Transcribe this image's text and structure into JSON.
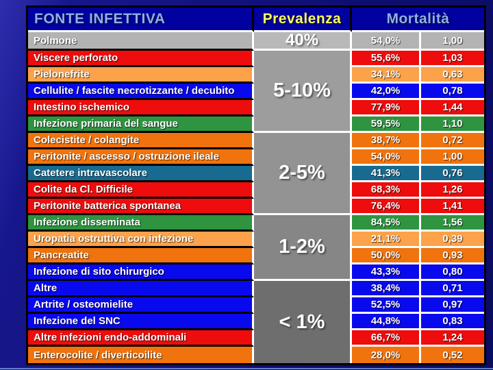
{
  "slide": {
    "background": "#0f0f74",
    "bottom_accent_color": "#6e93d6"
  },
  "table": {
    "header": {
      "source_label": "FONTE INFETTIVA",
      "prevalence_label": "Prevalenza",
      "mortality_label": "Mortalità",
      "bg": "#0101a0",
      "source_text_color": "#8fb0e8",
      "prevalence_text_color": "#ffff5e",
      "mortality_text_color": "#8fb0e8"
    },
    "row_colors": {
      "gray": "#b3b3b3",
      "red": "#ee0c0c",
      "orange": "#f0730d",
      "orange_light": "#fba24a",
      "blue": "#0909ee",
      "green": "#2e9440",
      "teal": "#186a90"
    },
    "groups": [
      {
        "prevalence": "40%",
        "shade": "#b8b8b8",
        "rows": [
          {
            "label": "Polmone",
            "color": "gray",
            "mortality_pct": "54,0%",
            "mortality_ratio": "1,00"
          }
        ]
      },
      {
        "prevalence": "5-10%",
        "shade": "#9d9d9d",
        "rows": [
          {
            "label": "Viscere perforato",
            "color": "red",
            "mortality_pct": "55,6%",
            "mortality_ratio": "1,03"
          },
          {
            "label": "Pielonefrite",
            "color": "orange_light",
            "mortality_pct": "34,1%",
            "mortality_ratio": "0,63"
          },
          {
            "label": "Cellulite / fascite necrotizzante / decubito",
            "color": "blue",
            "mortality_pct": "42,0%",
            "mortality_ratio": "0,78"
          },
          {
            "label": "Intestino ischemico",
            "color": "red",
            "mortality_pct": "77,9%",
            "mortality_ratio": "1,44"
          },
          {
            "label": "Infezione primaria del sangue",
            "color": "green",
            "mortality_pct": "59,5%",
            "mortality_ratio": "1,10"
          }
        ]
      },
      {
        "prevalence": "2-5%",
        "shade": "#939393",
        "rows": [
          {
            "label": "Colecistite / colangite",
            "color": "orange",
            "mortality_pct": "38,7%",
            "mortality_ratio": "0,72"
          },
          {
            "label": "Peritonite / ascesso / ostruzione ileale",
            "color": "orange",
            "mortality_pct": "54,0%",
            "mortality_ratio": "1,00"
          },
          {
            "label": "Catetere intravascolare",
            "color": "teal",
            "mortality_pct": "41,3%",
            "mortality_ratio": "0,76"
          },
          {
            "label": "Colite da Cl. Difficile",
            "color": "red",
            "mortality_pct": "68,3%",
            "mortality_ratio": "1,26"
          },
          {
            "label": "Peritonite batterica spontanea",
            "color": "red",
            "mortality_pct": "76,4%",
            "mortality_ratio": "1,41"
          }
        ]
      },
      {
        "prevalence": "1-2%",
        "shade": "#868686",
        "rows": [
          {
            "label": "Infezione disseminata",
            "color": "green",
            "mortality_pct": "84,5%",
            "mortality_ratio": "1,56"
          },
          {
            "label": "Uropatia ostruttiva con infezione",
            "color": "orange_light",
            "mortality_pct": "21,1%",
            "mortality_ratio": "0,39"
          },
          {
            "label": "Pancreatite",
            "color": "orange",
            "mortality_pct": "50,0%",
            "mortality_ratio": "0,93"
          },
          {
            "label": "Infezione di sito chirurgico",
            "color": "blue",
            "mortality_pct": "43,3%",
            "mortality_ratio": "0,80"
          }
        ]
      },
      {
        "prevalence": "< 1%",
        "shade": "#6e6e6e",
        "rows": [
          {
            "label": "Altre",
            "color": "blue",
            "mortality_pct": "38,4%",
            "mortality_ratio": "0,71"
          },
          {
            "label": "Artrite / osteomielite",
            "color": "blue",
            "mortality_pct": "52,5%",
            "mortality_ratio": "0,97"
          },
          {
            "label": "Infezione del SNC",
            "color": "blue",
            "mortality_pct": "44,8%",
            "mortality_ratio": "0,83"
          },
          {
            "label": "Altre infezioni endo-addominali",
            "color": "red",
            "mortality_pct": "66,7%",
            "mortality_ratio": "1,24"
          },
          {
            "label": "Enterocolite / diverticoilite",
            "color": "orange",
            "mortality_pct": "28,0%",
            "mortality_ratio": "0,52"
          }
        ]
      }
    ]
  }
}
